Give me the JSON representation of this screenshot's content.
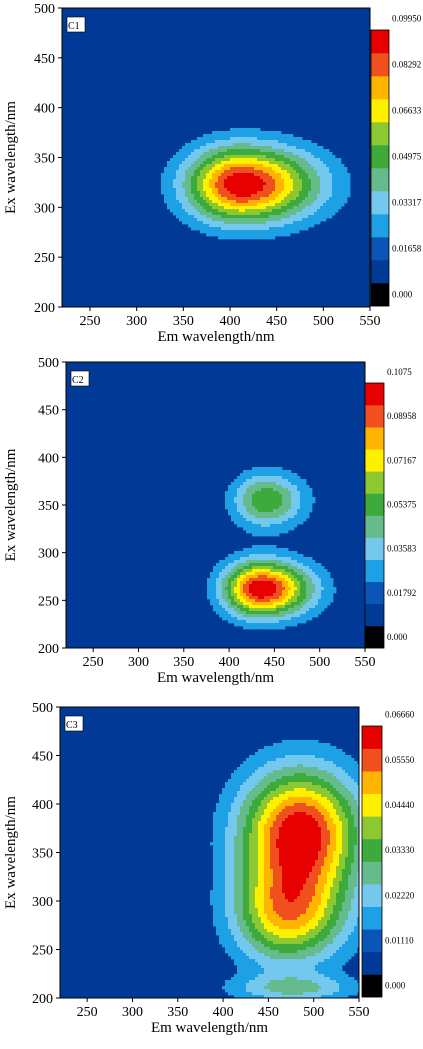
{
  "chart_data": [
    {
      "type": "heatmap",
      "title": "C1",
      "xlabel": "Em wavelength/nm",
      "ylabel": "Ex wavelength/nm",
      "xlim": [
        220,
        550
      ],
      "ylim": [
        200,
        500
      ],
      "xticks": [
        "250",
        "300",
        "350",
        "400",
        "450",
        "500",
        "550"
      ],
      "yticks": [
        "200",
        "250",
        "300",
        "350",
        "400",
        "450",
        "500"
      ],
      "colorbar_labels": [
        "0.000",
        "0.01658",
        "0.03317",
        "0.04975",
        "0.06633",
        "0.08292",
        "0.09950"
      ],
      "max_value": 0.0995,
      "peaks": [
        {
          "em": 412,
          "ex": 323,
          "value": 0.0995,
          "spread_em_left": 40,
          "spread_em_right": 55,
          "spread_ex": 26
        }
      ]
    },
    {
      "type": "heatmap",
      "title": "C2",
      "xlabel": "Em wavelength/nm",
      "ylabel": "Ex wavelength/nm",
      "xlim": [
        220,
        550
      ],
      "ylim": [
        200,
        500
      ],
      "xticks": [
        "250",
        "300",
        "350",
        "400",
        "450",
        "500",
        "550"
      ],
      "yticks": [
        "200",
        "250",
        "300",
        "350",
        "400",
        "450",
        "500"
      ],
      "colorbar_labels": [
        "0.000",
        "0.01792",
        "0.03583",
        "0.05375",
        "0.07167",
        "0.08958",
        "0.1075"
      ],
      "max_value": 0.1075,
      "peaks": [
        {
          "em": 435,
          "ex": 262,
          "value": 0.1075,
          "spread_em_left": 28,
          "spread_em_right": 38,
          "spread_ex": 20
        },
        {
          "em": 440,
          "ex": 355,
          "value": 0.052,
          "spread_em_left": 25,
          "spread_em_right": 30,
          "spread_ex": 20
        }
      ]
    },
    {
      "type": "heatmap",
      "title": "C3",
      "xlabel": "Em wavelength/nm",
      "ylabel": "Ex wavelength/nm",
      "xlim": [
        220,
        550
      ],
      "ylim": [
        200,
        500
      ],
      "xticks": [
        "250",
        "300",
        "350",
        "400",
        "450",
        "500",
        "550"
      ],
      "yticks": [
        "200",
        "250",
        "300",
        "350",
        "400",
        "450",
        "500"
      ],
      "colorbar_labels": [
        "0.000",
        "0.01110",
        "0.02220",
        "0.03330",
        "0.04440",
        "0.05550",
        "0.06660"
      ],
      "max_value": 0.0666,
      "peaks": [
        {
          "em": 485,
          "ex": 370,
          "value": 0.0666,
          "spread_em_left": 45,
          "spread_em_right": 45,
          "spread_ex": 45
        },
        {
          "em": 470,
          "ex": 285,
          "value": 0.045,
          "spread_em_left": 40,
          "spread_em_right": 45,
          "spread_ex": 35
        },
        {
          "em": 480,
          "ex": 210,
          "value": 0.02,
          "spread_em_left": 50,
          "spread_em_right": 45,
          "spread_ex": 10
        }
      ]
    }
  ],
  "palette": [
    "#000000",
    "#003a96",
    "#0a55b5",
    "#1ea0e6",
    "#74c8ee",
    "#66bb8c",
    "#3cab3c",
    "#8cc832",
    "#fff000",
    "#ffb400",
    "#f0501e",
    "#e60000"
  ]
}
